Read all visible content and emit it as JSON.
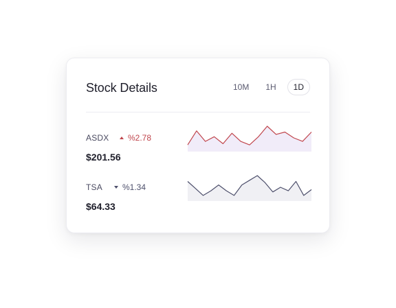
{
  "card": {
    "title": "Stock Details",
    "ranges": [
      {
        "label": "10M",
        "active": false
      },
      {
        "label": "1H",
        "active": false
      },
      {
        "label": "1D",
        "active": true
      }
    ]
  },
  "stocks": [
    {
      "ticker": "ASDX",
      "change": "%2.78",
      "direction": "up",
      "price": "$201.56",
      "color": "#c0454c",
      "fill": "#efeaf8",
      "trend": [
        0.2,
        0.8,
        0.35,
        0.55,
        0.25,
        0.7,
        0.35,
        0.2,
        0.55,
        1.0,
        0.65,
        0.75,
        0.5,
        0.35,
        0.75
      ]
    },
    {
      "ticker": "TSA",
      "change": "%1.34",
      "direction": "down",
      "price": "$64.33",
      "color": "#4d4f6b",
      "fill": "#eeeef3",
      "trend": [
        0.75,
        0.45,
        0.15,
        0.35,
        0.6,
        0.35,
        0.15,
        0.6,
        0.8,
        1.0,
        0.7,
        0.3,
        0.5,
        0.35,
        0.75,
        0.15,
        0.4
      ]
    }
  ],
  "colors": {
    "up": "#c0454c",
    "down": "#4d4f6b",
    "text": "#1e1e2a",
    "divider": "#ececf1"
  }
}
